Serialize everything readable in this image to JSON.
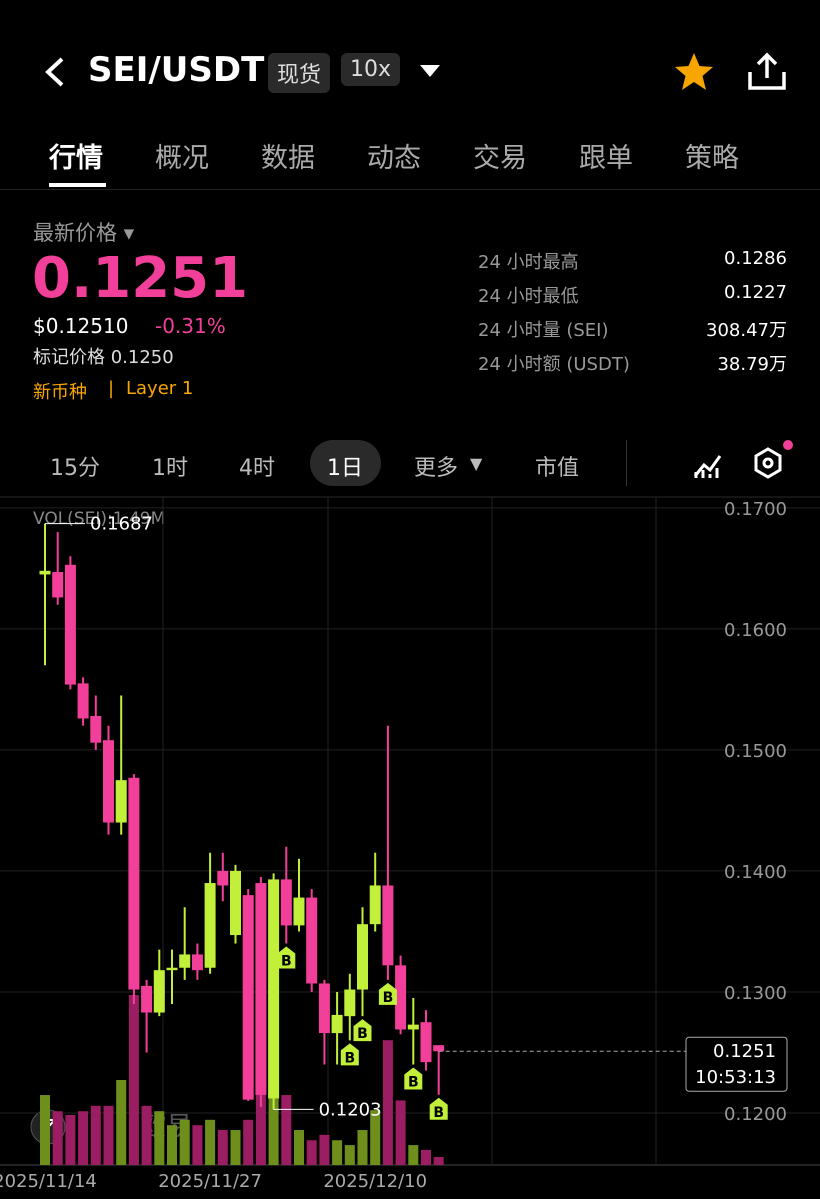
{
  "header": {
    "pair": "SEI/USDT",
    "badge_spot": "现货",
    "badge_leverage": "10x"
  },
  "tabs": [
    "行情",
    "概况",
    "数据",
    "动态",
    "交易",
    "跟单",
    "策略"
  ],
  "price": {
    "label": "最新价格",
    "last": "0.1251",
    "usd": "$0.12510",
    "change": "-0.31%",
    "mark": "标记价格 0.1250",
    "tag_new": "新币种",
    "tag_sep": "|",
    "tag_sector": "Layer 1"
  },
  "stats": [
    [
      "24 小时最高",
      "0.1286"
    ],
    [
      "24 小时最低",
      "0.1227"
    ],
    [
      "24 小时量 (SEI)",
      "308.47万"
    ],
    [
      "24 小时额 (USDT)",
      "38.79万"
    ]
  ],
  "intervals": [
    "15分",
    "1时",
    "4时",
    "1日",
    "更多",
    "市值"
  ],
  "watermark": "欧易",
  "chart_data": {
    "type": "candlestick",
    "volume_title": "VOL(SEI):1.49M",
    "countdown": "10:53:13",
    "marker_label": "B",
    "up_color": "#c2f03a",
    "down_color": "#f2409a",
    "categories": [
      "2025/11/14",
      null,
      null,
      null,
      null,
      null,
      null,
      null,
      null,
      null,
      null,
      null,
      null,
      "2025/11/27",
      null,
      null,
      null,
      null,
      null,
      null,
      null,
      null,
      null,
      null,
      null,
      null,
      "2025/12/10",
      null,
      null,
      null,
      null,
      null
    ],
    "open": [
      0.1645,
      0.1647,
      0.1653,
      0.1555,
      0.1528,
      0.1508,
      0.144,
      0.1477,
      0.1305,
      0.1283,
      0.1318,
      0.132,
      0.1331,
      0.132,
      0.14,
      0.1347,
      0.138,
      0.139,
      0.1212,
      0.1393,
      0.1355,
      0.1378,
      0.1307,
      0.1266,
      0.128,
      0.1302,
      0.1356,
      0.1388,
      0.1322,
      0.1269,
      0.1275,
      0.1256
    ],
    "high": [
      0.1687,
      0.168,
      0.166,
      0.156,
      0.1545,
      0.152,
      0.1545,
      0.148,
      0.131,
      0.1335,
      0.1335,
      0.137,
      0.134,
      0.1415,
      0.1415,
      0.1405,
      0.1385,
      0.1395,
      0.1398,
      0.142,
      0.141,
      0.1385,
      0.131,
      0.13,
      0.1315,
      0.137,
      0.1415,
      0.152,
      0.133,
      0.1295,
      0.1285,
      0.1256
    ],
    "low": [
      0.157,
      0.162,
      0.155,
      0.152,
      0.15,
      0.143,
      0.143,
      0.129,
      0.125,
      0.128,
      0.129,
      0.131,
      0.131,
      0.1315,
      0.1375,
      0.134,
      0.121,
      0.1205,
      0.1203,
      0.134,
      0.135,
      0.13,
      0.124,
      0.124,
      0.126,
      0.128,
      0.135,
      0.131,
      0.1265,
      0.124,
      0.1235,
      0.1215
    ],
    "close": [
      0.1648,
      0.1626,
      0.1554,
      0.1526,
      0.1506,
      0.144,
      0.1475,
      0.1302,
      0.1283,
      0.1318,
      0.132,
      0.1331,
      0.1318,
      0.139,
      0.1388,
      0.14,
      0.1211,
      0.1215,
      0.1393,
      0.1355,
      0.1378,
      0.1307,
      0.1266,
      0.1281,
      0.1302,
      0.1356,
      0.1388,
      0.1322,
      0.1269,
      0.1273,
      0.1242,
      0.1251
    ],
    "volume": [
      13,
      10,
      9.3,
      10,
      11,
      11,
      15.8,
      31.6,
      11,
      10,
      7.4,
      8.4,
      7.4,
      8.4,
      6.5,
      6.5,
      8.4,
      14,
      13,
      13,
      6.5,
      4.6,
      5.6,
      4.6,
      3.7,
      6.5,
      10.2,
      23.2,
      12,
      3.7,
      2.8,
      1.49
    ],
    "markers": [
      19,
      24,
      25,
      27,
      29,
      31
    ],
    "ylim": [
      0.1157,
      0.1709
    ],
    "yticks": [
      {
        "value": 0.17,
        "label": "0.1700"
      },
      {
        "value": 0.16,
        "label": "0.1600"
      },
      {
        "value": 0.15,
        "label": "0.1500"
      },
      {
        "value": 0.14,
        "label": "0.1400"
      },
      {
        "value": 0.13,
        "label": "0.1300"
      },
      {
        "value": 0.12,
        "label": "0.1200"
      }
    ],
    "grid": true
  }
}
